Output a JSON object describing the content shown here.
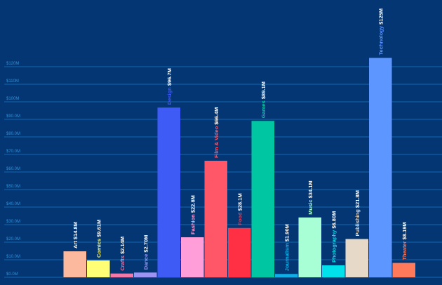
{
  "chart_data": {
    "type": "bar",
    "title": "",
    "xlabel": "",
    "ylabel": "",
    "ylim": [
      0,
      130
    ],
    "grid": true,
    "legend": "none",
    "y_ticks": [
      {
        "value": 0,
        "label": "$0.0M"
      },
      {
        "value": 10,
        "label": "$10.0M"
      },
      {
        "value": 20,
        "label": "$20.0M"
      },
      {
        "value": 30,
        "label": "$30.0M"
      },
      {
        "value": 40,
        "label": "$40.0M"
      },
      {
        "value": 50,
        "label": "$50.0M"
      },
      {
        "value": 60,
        "label": "$60.0M"
      },
      {
        "value": 70,
        "label": "$70.0M"
      },
      {
        "value": 80,
        "label": "$80.0M"
      },
      {
        "value": 90,
        "label": "$90.0M"
      },
      {
        "value": 100,
        "label": "$100M"
      },
      {
        "value": 110,
        "label": "$110M"
      },
      {
        "value": 120,
        "label": "$120M"
      }
    ],
    "bars": [
      {
        "category": "Art",
        "value": 14.8,
        "value_label": "$14.8M",
        "color": "#FDB99D",
        "label_color": "#FFFFFF"
      },
      {
        "category": "Comics",
        "value": 9.61,
        "value_label": "$9.61M",
        "color": "#FFFE74",
        "label_color": "#FFFE74"
      },
      {
        "category": "Crafts",
        "value": 2.14,
        "value_label": "$2.14M",
        "color": "#F37AA8",
        "label_color": "#F37AA8"
      },
      {
        "category": "Dance",
        "value": 2.7,
        "value_label": "$2.70M",
        "color": "#9D93F5",
        "label_color": "#9D93F5"
      },
      {
        "category": "Design",
        "value": 96.7,
        "value_label": "$96.7M",
        "color": "#3E5BF5",
        "label_color": "#3E5BF5"
      },
      {
        "category": "Fashion",
        "value": 22.8,
        "value_label": "$22.8M",
        "color": "#FF9ED8",
        "label_color": "#FF9ED8"
      },
      {
        "category": "Film & Video",
        "value": 66.4,
        "value_label": "$66.4M",
        "color": "#FF5768",
        "label_color": "#FF5768"
      },
      {
        "category": "Food",
        "value": 28.1,
        "value_label": "$28.1M",
        "color": "#FF2F44",
        "label_color": "#FF2F44"
      },
      {
        "category": "Games",
        "value": 89.1,
        "value_label": "$89.1M",
        "color": "#00C7A2",
        "label_color": "#00C7A2"
      },
      {
        "category": "Journalism",
        "value": 1.9,
        "value_label": "$1.90M",
        "color": "#0FAEE6",
        "label_color": "#0FAEE6"
      },
      {
        "category": "Music",
        "value": 34.1,
        "value_label": "$34.1M",
        "color": "#A8FFD5",
        "label_color": "#A8FFD5"
      },
      {
        "category": "Photography",
        "value": 6.8,
        "value_label": "$6.80M",
        "color": "#00E1EB",
        "label_color": "#00E1EB"
      },
      {
        "category": "Publishing",
        "value": 21.8,
        "value_label": "$21.8M",
        "color": "#E6D9C8",
        "label_color": "#E6D9C8"
      },
      {
        "category": "Technology",
        "value": 125,
        "value_label": "$125M",
        "color": "#5D96FF",
        "label_color": "#5D96FF"
      },
      {
        "category": "Theater",
        "value": 8.19,
        "value_label": "$8.19M",
        "color": "#FF7A5A",
        "label_color": "#FF7A5A"
      }
    ]
  }
}
